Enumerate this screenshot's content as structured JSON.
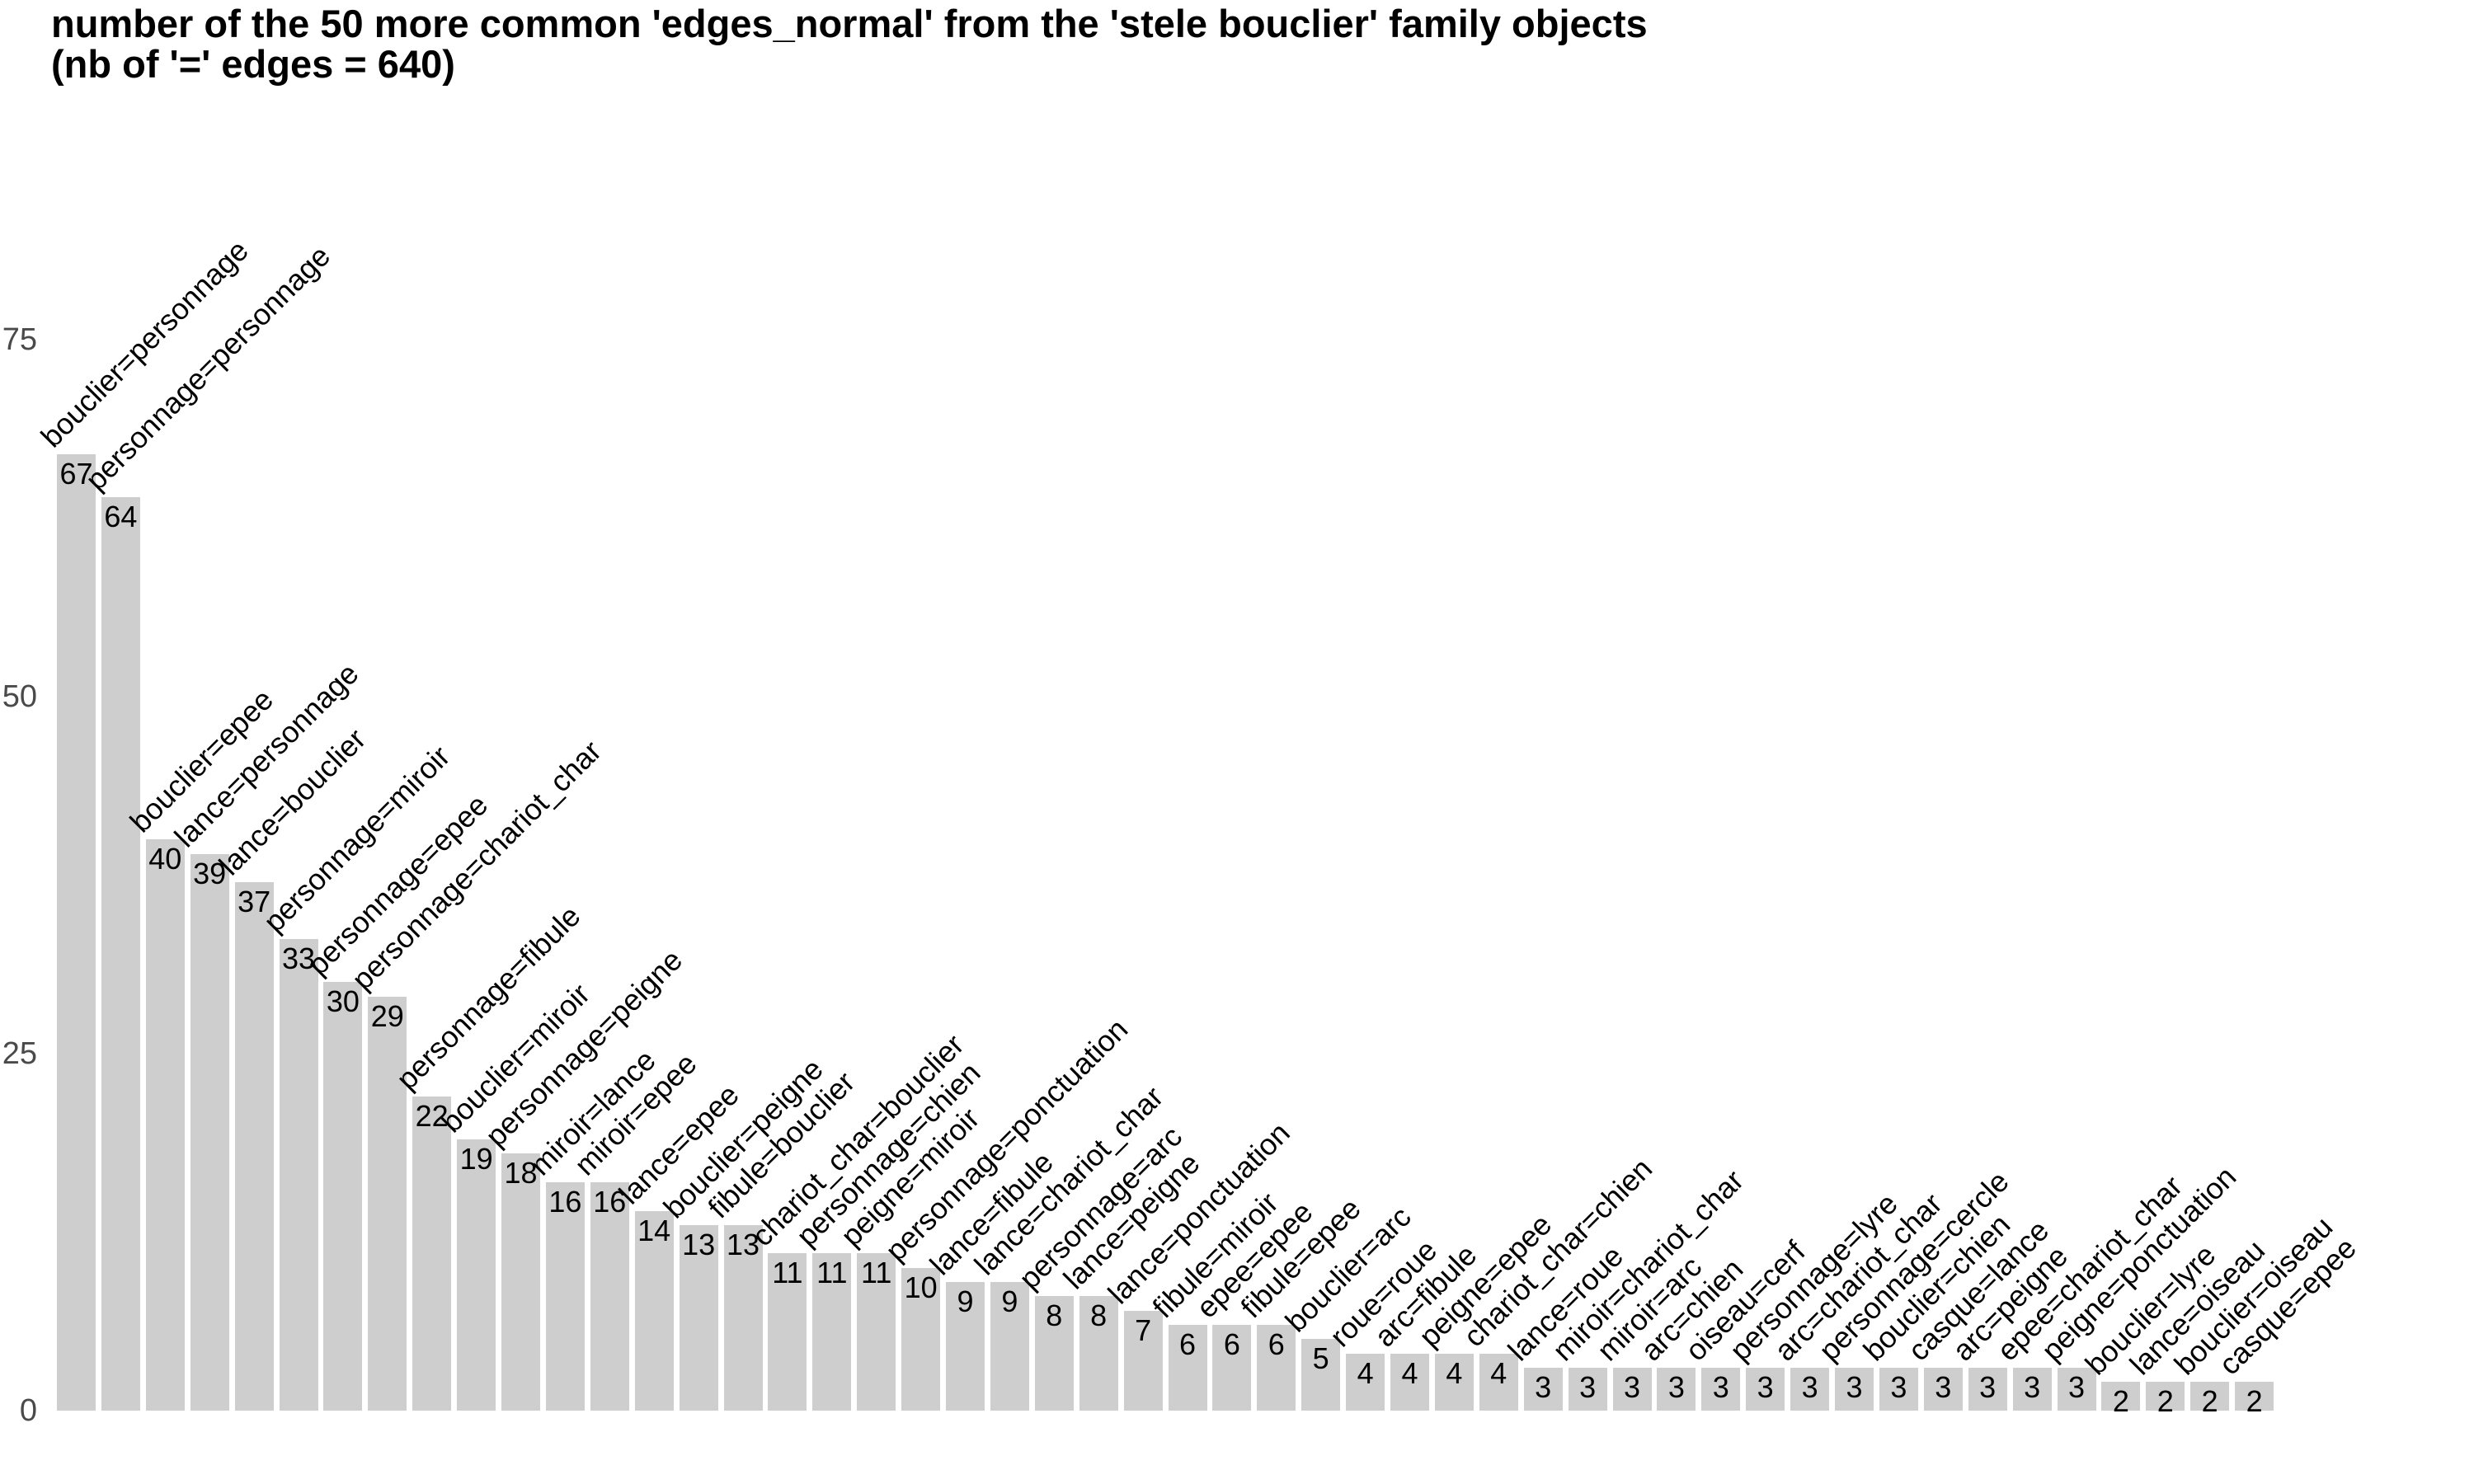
{
  "chart_data": {
    "type": "bar",
    "title": "number of the 50 more common 'edges_normal' from the 'stele bouclier' family objects",
    "subtitle": "(nb of '=' edges = 640)",
    "categories": [
      "bouclier=personnage",
      "personnage=personnage",
      "bouclier=epee",
      "lance=personnage",
      "lance=bouclier",
      "personnage=miroir",
      "personnage=epee",
      "personnage=chariot_char",
      "personnage=fibule",
      "bouclier=miroir",
      "personnage=peigne",
      "miroir=lance",
      "miroir=epee",
      "lance=epee",
      "bouclier=peigne",
      "fibule=bouclier",
      "chariot_char=bouclier",
      "personnage=chien",
      "peigne=miroir",
      "personnage=ponctuation",
      "lance=fibule",
      "lance=chariot_char",
      "personnage=arc",
      "lance=peigne",
      "lance=ponctuation",
      "fibule=miroir",
      "epee=epee",
      "fibule=epee",
      "bouclier=arc",
      "roue=roue",
      "arc=fibule",
      "peigne=epee",
      "chariot_char=chien",
      "lance=roue",
      "miroir=chariot_char",
      "miroir=arc",
      "arc=chien",
      "oiseau=cerf",
      "personnage=lyre",
      "arc=chariot_char",
      "personnage=cercle",
      "bouclier=chien",
      "casque=lance",
      "arc=peigne",
      "epee=chariot_char",
      "peigne=ponctuation",
      "bouclier=lyre",
      "lance=oiseau",
      "bouclier=oiseau",
      "casque=epee"
    ],
    "values": [
      67,
      64,
      40,
      39,
      37,
      33,
      30,
      29,
      22,
      19,
      18,
      16,
      16,
      14,
      13,
      13,
      11,
      11,
      11,
      10,
      9,
      9,
      8,
      8,
      7,
      6,
      6,
      6,
      5,
      4,
      4,
      4,
      4,
      3,
      3,
      3,
      3,
      3,
      3,
      3,
      3,
      3,
      3,
      3,
      3,
      3,
      2,
      2,
      2,
      2
    ],
    "xlabel": "",
    "ylabel": "",
    "yticks": [
      75,
      50,
      25,
      0
    ],
    "ylim": [
      0,
      77
    ],
    "grid": false,
    "legend_position": "none",
    "bar_label_rotation_deg": 45,
    "bar_color": "#cecece",
    "value_label_color": "#000000",
    "category_label_color": "#000000",
    "axis_tick_color": "#4a4a4a",
    "background_color": "#ffffff"
  }
}
